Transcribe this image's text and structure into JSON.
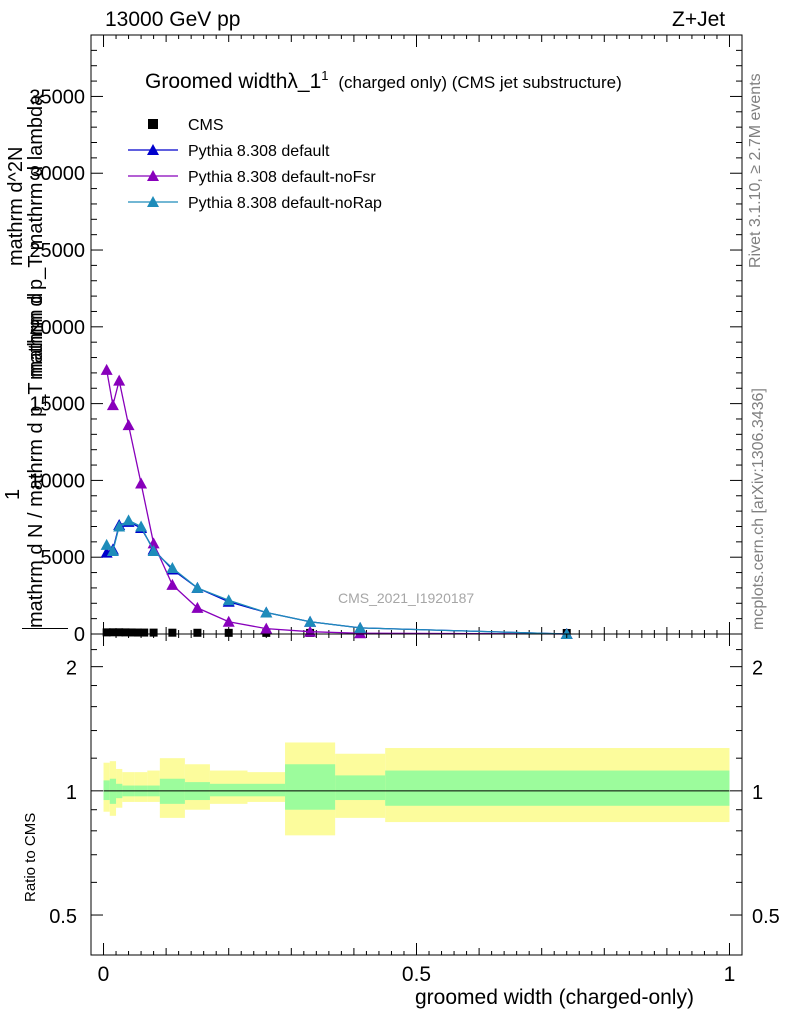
{
  "header": {
    "left": "13000 GeV pp",
    "right": "Z+Jet"
  },
  "side_labels": {
    "rivet": "Rivet 3.1.10, ≥ 2.7M events",
    "mcplots": "mcplots.cern.ch [arXiv:1306.3436]"
  },
  "watermark": "CMS_2021_I1920187",
  "chart_data": [
    {
      "type": "line",
      "title_main": "Groomed widthλ_1",
      "title_sup": "1",
      "title_sub": "(charged only) (CMS jet substructure)",
      "ylabel_lines": [
        "mathrm d^2N",
        "mathrm d p_T mathrm d lambda",
        "1",
        "mathrm d N / mathrm d p_T mathrm d"
      ],
      "xlim": [
        -0.02,
        1.02
      ],
      "ylim": [
        0,
        39000
      ],
      "yticks": [
        0,
        5000,
        10000,
        15000,
        20000,
        25000,
        30000,
        35000
      ],
      "ytick_labels": [
        "0",
        "5000",
        "10000",
        "15000",
        "20000",
        "25000",
        "30000",
        "35000"
      ],
      "legend_position": "top-left",
      "series": [
        {
          "name": "CMS",
          "color": "#000000",
          "marker": "square",
          "x": [
            0.005,
            0.015,
            0.025,
            0.035,
            0.045,
            0.055,
            0.065,
            0.08,
            0.11,
            0.15,
            0.2,
            0.26,
            0.33,
            0.41,
            0.74
          ],
          "y": [
            40,
            45,
            45,
            40,
            35,
            30,
            28,
            25,
            20,
            15,
            10,
            8,
            5,
            3,
            1
          ]
        },
        {
          "name": "Pythia 8.308 default",
          "color": "#0000cc",
          "marker": "triangle",
          "x": [
            0.005,
            0.015,
            0.025,
            0.04,
            0.06,
            0.08,
            0.11,
            0.15,
            0.2,
            0.26,
            0.33,
            0.41,
            0.74
          ],
          "y": [
            5300,
            5500,
            7100,
            7300,
            6900,
            5500,
            4200,
            3000,
            2100,
            1400,
            800,
            400,
            0
          ]
        },
        {
          "name": "Pythia 8.308 default-noFsr",
          "color": "#8800bb",
          "marker": "triangle",
          "x": [
            0.005,
            0.015,
            0.025,
            0.04,
            0.06,
            0.08,
            0.11,
            0.15,
            0.2,
            0.26,
            0.33,
            0.41,
            0.74
          ],
          "y": [
            17200,
            14900,
            16500,
            13600,
            9800,
            5900,
            3200,
            1700,
            800,
            350,
            150,
            50,
            0
          ]
        },
        {
          "name": "Pythia 8.308 default-noRap",
          "color": "#1e8cba",
          "marker": "triangle",
          "x": [
            0.005,
            0.015,
            0.025,
            0.04,
            0.06,
            0.08,
            0.11,
            0.15,
            0.2,
            0.26,
            0.33,
            0.41,
            0.74
          ],
          "y": [
            5800,
            5400,
            7000,
            7400,
            7000,
            5400,
            4300,
            3000,
            2200,
            1400,
            800,
            400,
            0
          ]
        }
      ]
    },
    {
      "type": "area",
      "ylabel": "Ratio to CMS",
      "xlabel": "groomed width (charged-only)",
      "xlim": [
        -0.02,
        1.02
      ],
      "ylim": [
        0.4,
        2.4
      ],
      "log_y": true,
      "yticks": [
        0.5,
        1,
        2
      ],
      "ytick_labels": [
        "0.5",
        "1",
        "2"
      ],
      "xticks": [
        0,
        0.5,
        1
      ],
      "xtick_labels": [
        "0",
        "0.5",
        "1"
      ],
      "bins": [
        {
          "lo": 0.0,
          "hi": 0.01,
          "inner_lo": 0.95,
          "inner_hi": 1.06,
          "outer_lo": 0.89,
          "outer_hi": 1.17
        },
        {
          "lo": 0.01,
          "hi": 0.02,
          "inner_lo": 0.93,
          "inner_hi": 1.07,
          "outer_lo": 0.87,
          "outer_hi": 1.18
        },
        {
          "lo": 0.02,
          "hi": 0.03,
          "inner_lo": 0.96,
          "inner_hi": 1.04,
          "outer_lo": 0.91,
          "outer_hi": 1.13
        },
        {
          "lo": 0.03,
          "hi": 0.05,
          "inner_lo": 0.97,
          "inner_hi": 1.03,
          "outer_lo": 0.94,
          "outer_hi": 1.11
        },
        {
          "lo": 0.05,
          "hi": 0.07,
          "inner_lo": 0.97,
          "inner_hi": 1.03,
          "outer_lo": 0.94,
          "outer_hi": 1.11
        },
        {
          "lo": 0.07,
          "hi": 0.09,
          "inner_lo": 0.97,
          "inner_hi": 1.03,
          "outer_lo": 0.94,
          "outer_hi": 1.12
        },
        {
          "lo": 0.09,
          "hi": 0.13,
          "inner_lo": 0.93,
          "inner_hi": 1.07,
          "outer_lo": 0.86,
          "outer_hi": 1.2
        },
        {
          "lo": 0.13,
          "hi": 0.17,
          "inner_lo": 0.95,
          "inner_hi": 1.05,
          "outer_lo": 0.9,
          "outer_hi": 1.16
        },
        {
          "lo": 0.17,
          "hi": 0.23,
          "inner_lo": 0.97,
          "inner_hi": 1.04,
          "outer_lo": 0.93,
          "outer_hi": 1.12
        },
        {
          "lo": 0.23,
          "hi": 0.29,
          "inner_lo": 0.97,
          "inner_hi": 1.04,
          "outer_lo": 0.94,
          "outer_hi": 1.11
        },
        {
          "lo": 0.29,
          "hi": 0.37,
          "inner_lo": 0.9,
          "inner_hi": 1.16,
          "outer_lo": 0.78,
          "outer_hi": 1.31
        },
        {
          "lo": 0.37,
          "hi": 0.45,
          "inner_lo": 0.95,
          "inner_hi": 1.09,
          "outer_lo": 0.86,
          "outer_hi": 1.23
        },
        {
          "lo": 0.45,
          "hi": 1.0,
          "inner_lo": 0.92,
          "inner_hi": 1.12,
          "outer_lo": 0.84,
          "outer_hi": 1.27
        }
      ],
      "colors": {
        "inner": "#9cfc9c",
        "outer": "#fcfc9c",
        "line": "#000000"
      }
    }
  ]
}
